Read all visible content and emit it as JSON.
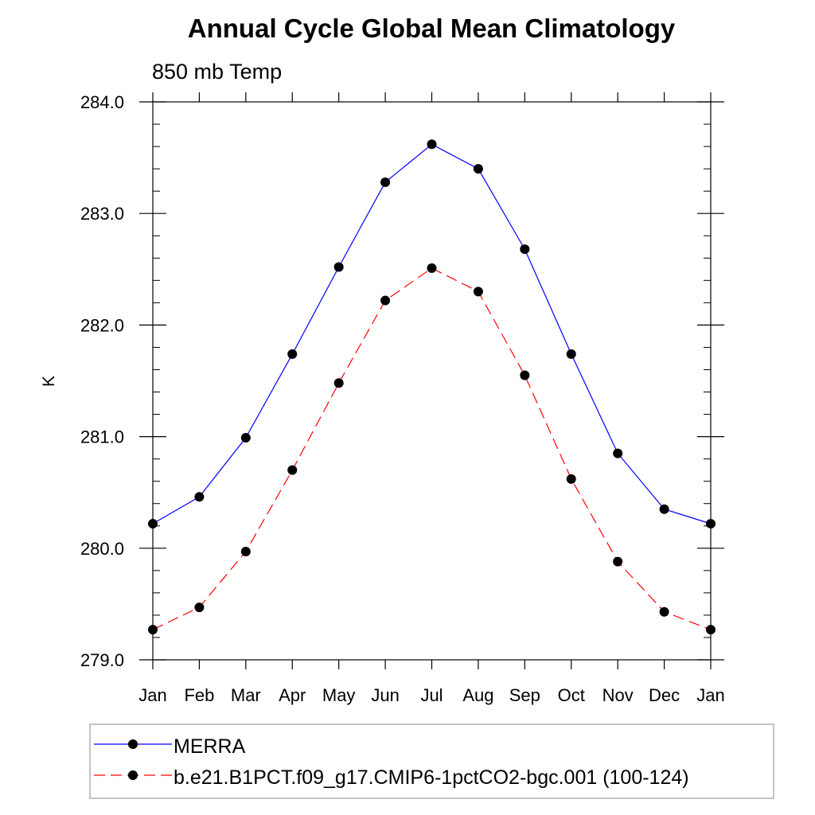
{
  "chart_data": {
    "type": "line",
    "title": "Annual Cycle Global Mean Climatology",
    "subtitle": "850 mb Temp",
    "xlabel": "",
    "ylabel": "K",
    "categories": [
      "Jan",
      "Feb",
      "Mar",
      "Apr",
      "May",
      "Jun",
      "Jul",
      "Aug",
      "Sep",
      "Oct",
      "Nov",
      "Dec",
      "Jan"
    ],
    "ylim": [
      279.0,
      284.0
    ],
    "yticks": [
      279.0,
      280.0,
      281.0,
      282.0,
      283.0,
      284.0
    ],
    "ytick_labels": [
      "279.0",
      "280.0",
      "281.0",
      "282.0",
      "283.0",
      "284.0"
    ],
    "y_minor_step": 0.2,
    "grid": false,
    "legend_position": "bottom",
    "series": [
      {
        "name": "MERRA",
        "color": "#0000ff",
        "line_style": "solid",
        "marker": "filled-circle",
        "values": [
          280.22,
          280.46,
          280.99,
          281.74,
          282.52,
          283.28,
          283.62,
          283.4,
          282.68,
          281.74,
          280.85,
          280.35,
          280.22
        ]
      },
      {
        "name": "b.e21.B1PCT.f09_g17.CMIP6-1pctCO2-bgc.001 (100-124)",
        "color": "#ff0000",
        "line_style": "dashed",
        "marker": "filled-circle",
        "values": [
          279.27,
          279.47,
          279.97,
          280.7,
          281.48,
          282.22,
          282.51,
          282.3,
          281.55,
          280.62,
          279.88,
          279.43,
          279.27
        ]
      }
    ]
  }
}
